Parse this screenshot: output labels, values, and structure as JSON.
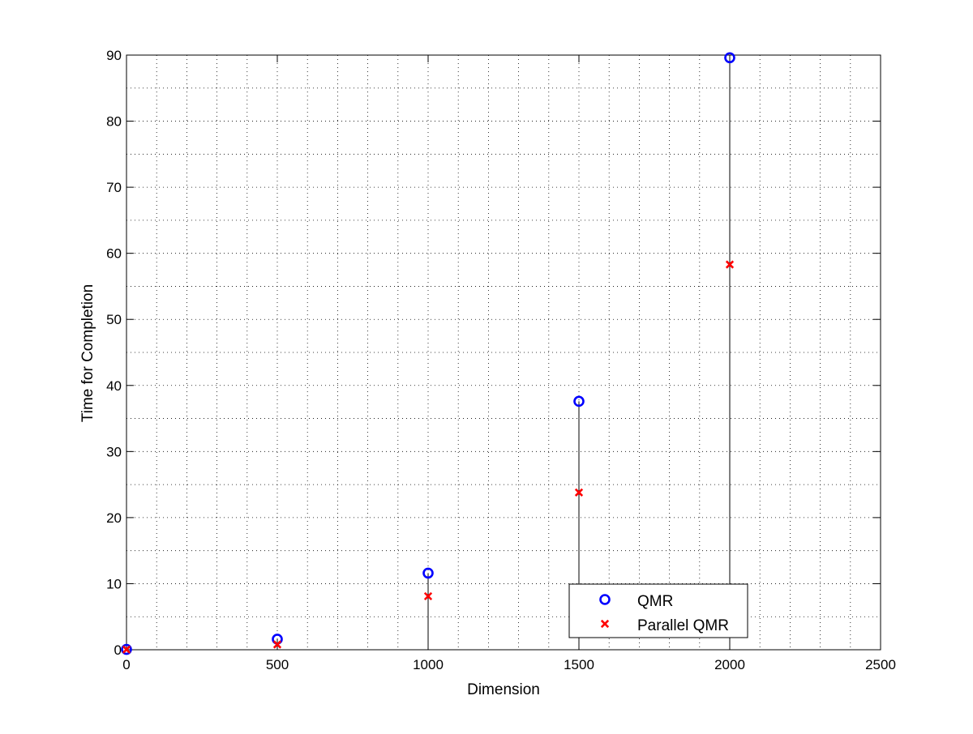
{
  "chart_data": {
    "type": "scatter",
    "title": "",
    "xlabel": "Dimension",
    "ylabel": "Time for Completion",
    "xlim": [
      0,
      2500
    ],
    "ylim": [
      0,
      90
    ],
    "xticks": [
      0,
      500,
      1000,
      1500,
      2000,
      2500
    ],
    "yticks": [
      0,
      10,
      20,
      30,
      40,
      50,
      60,
      70,
      80,
      90
    ],
    "x_minor_step": 100,
    "y_minor_step": 5,
    "grid": true,
    "grid_style": "dotted",
    "stems_from_zero": true,
    "legend_position": "bottom-right",
    "series": [
      {
        "name": "QMR",
        "marker": "circle",
        "color": "#0000ff",
        "x": [
          0,
          500,
          1000,
          1500,
          2000
        ],
        "y": [
          0.05,
          1.6,
          11.6,
          37.6,
          89.6
        ]
      },
      {
        "name": "Parallel QMR",
        "marker": "x",
        "color": "#ff0000",
        "x": [
          0,
          500,
          1000,
          1500,
          2000
        ],
        "y": [
          0.03,
          0.8,
          8.1,
          23.8,
          58.3
        ]
      }
    ]
  }
}
